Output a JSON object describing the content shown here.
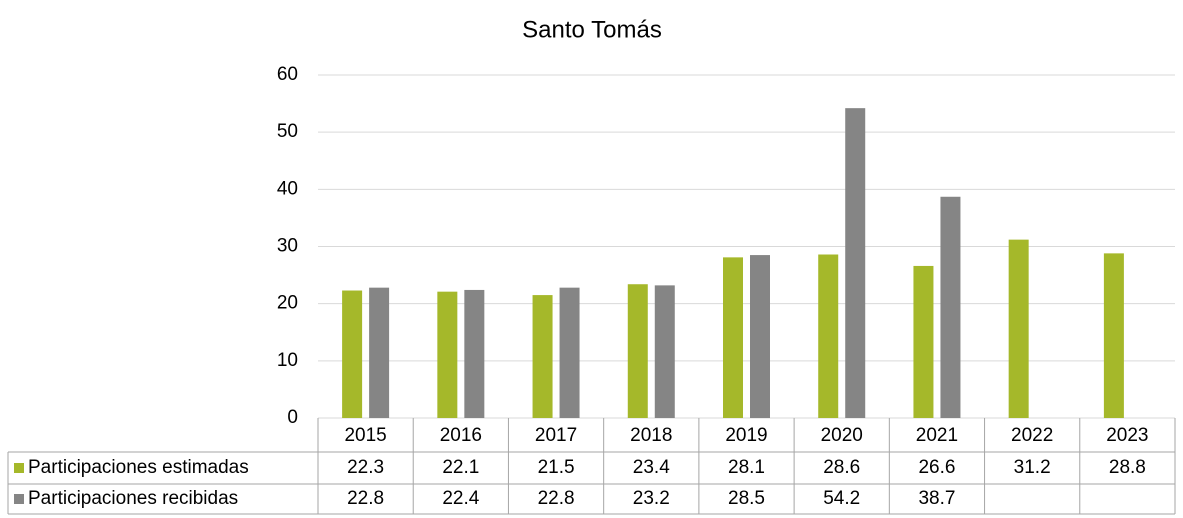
{
  "chart_data": {
    "type": "bar",
    "title": "Santo Tomás",
    "categories": [
      "2015",
      "2016",
      "2017",
      "2018",
      "2019",
      "2020",
      "2021",
      "2022",
      "2023"
    ],
    "series": [
      {
        "name": "Participaciones estimadas",
        "color": "#a5b82a",
        "values": [
          22.3,
          22.1,
          21.5,
          23.4,
          28.1,
          28.6,
          26.6,
          31.2,
          28.8
        ]
      },
      {
        "name": "Participaciones recibidas",
        "color": "#858585",
        "values": [
          22.8,
          22.4,
          22.8,
          23.2,
          28.5,
          54.2,
          38.7,
          null,
          null
        ]
      }
    ],
    "ylim": [
      0,
      60
    ],
    "yticks": [
      0,
      10,
      20,
      30,
      40,
      50,
      60
    ],
    "grid": true,
    "data_table": true
  }
}
